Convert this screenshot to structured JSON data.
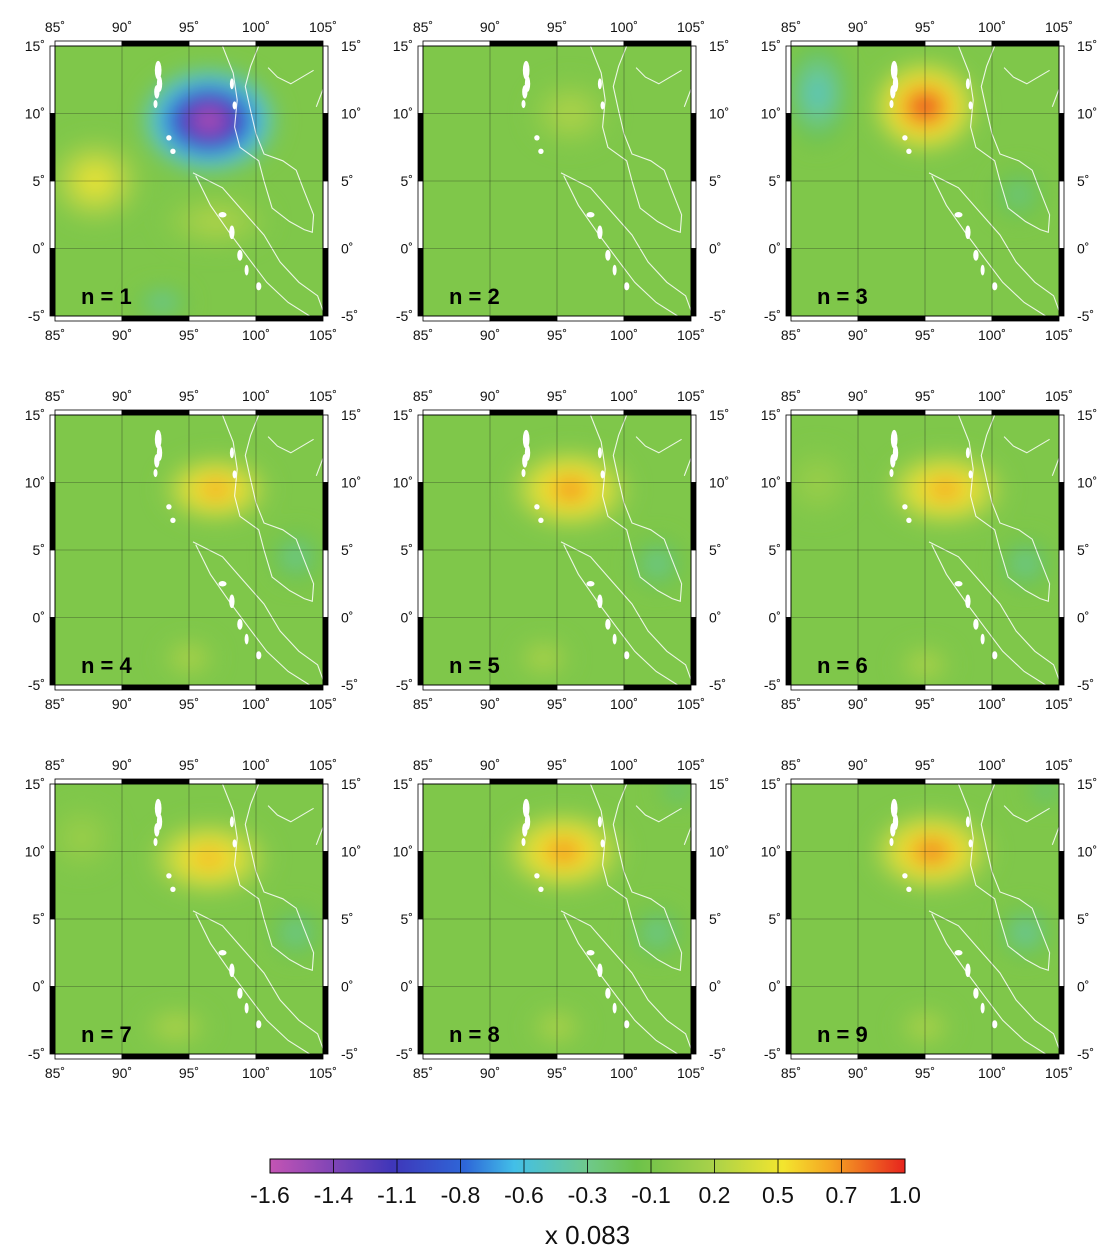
{
  "figure": {
    "lon_ticks": [
      "85˚",
      "90˚",
      "95˚",
      "100˚",
      "105˚"
    ],
    "lat_ticks": [
      "15˚",
      "10˚",
      "5˚",
      "0˚",
      "-5˚"
    ],
    "extent": {
      "lon": [
        85,
        105
      ],
      "lat": [
        -5,
        15
      ]
    },
    "panels": [
      {
        "label": "n = 1",
        "anomalies": [
          {
            "lon": 96.5,
            "lat": 9.5,
            "value": -1.6,
            "rlon": 5.2,
            "rlat": 4.0
          },
          {
            "lon": 88.0,
            "lat": 5.0,
            "value": 0.5,
            "rlon": 3.5,
            "rlat": 3.2
          },
          {
            "lon": 97.0,
            "lat": 2.0,
            "value": 0.25,
            "rlon": 4.0,
            "rlat": 2.0
          },
          {
            "lon": 93.0,
            "lat": -4.0,
            "value": -0.4,
            "rlon": 2.0,
            "rlat": 1.2
          }
        ]
      },
      {
        "label": "n = 2",
        "anomalies": [
          {
            "lon": 96.0,
            "lat": 10.0,
            "value": 0.25,
            "rlon": 3.0,
            "rlat": 2.5
          }
        ]
      },
      {
        "label": "n = 3",
        "anomalies": [
          {
            "lon": 95.0,
            "lat": 10.5,
            "value": 1.0,
            "rlon": 4.0,
            "rlat": 3.5
          },
          {
            "lon": 87.0,
            "lat": 11.5,
            "value": -0.5,
            "rlon": 2.5,
            "rlat": 4.0
          },
          {
            "lon": 102.0,
            "lat": 4.0,
            "value": -0.3,
            "rlon": 2.0,
            "rlat": 2.0
          }
        ]
      },
      {
        "label": "n = 4",
        "anomalies": [
          {
            "lon": 97.0,
            "lat": 9.5,
            "value": 0.75,
            "rlon": 4.0,
            "rlat": 2.5
          },
          {
            "lon": 103.0,
            "lat": 4.5,
            "value": -0.35,
            "rlon": 2.0,
            "rlat": 2.0
          },
          {
            "lon": 95.0,
            "lat": -3.0,
            "value": 0.25,
            "rlon": 2.0,
            "rlat": 1.5
          }
        ]
      },
      {
        "label": "n = 5",
        "anomalies": [
          {
            "lon": 96.0,
            "lat": 9.5,
            "value": 0.8,
            "rlon": 4.5,
            "rlat": 3.0
          },
          {
            "lon": 102.5,
            "lat": 4.0,
            "value": -0.35,
            "rlon": 2.0,
            "rlat": 2.0
          },
          {
            "lon": 94.0,
            "lat": -3.0,
            "value": 0.25,
            "rlon": 2.0,
            "rlat": 1.5
          }
        ]
      },
      {
        "label": "n = 6",
        "anomalies": [
          {
            "lon": 96.5,
            "lat": 9.5,
            "value": 0.75,
            "rlon": 4.5,
            "rlat": 2.8
          },
          {
            "lon": 102.5,
            "lat": 4.0,
            "value": -0.35,
            "rlon": 2.0,
            "rlat": 2.0
          },
          {
            "lon": 95.0,
            "lat": -3.5,
            "value": 0.25,
            "rlon": 2.0,
            "rlat": 1.5
          },
          {
            "lon": 87.0,
            "lat": 10.0,
            "value": 0.15,
            "rlon": 2.5,
            "rlat": 2.5
          }
        ]
      },
      {
        "label": "n = 7",
        "anomalies": [
          {
            "lon": 96.5,
            "lat": 9.5,
            "value": 0.7,
            "rlon": 4.5,
            "rlat": 2.8
          },
          {
            "lon": 103.0,
            "lat": 4.0,
            "value": -0.35,
            "rlon": 2.0,
            "rlat": 2.0
          },
          {
            "lon": 94.0,
            "lat": -3.0,
            "value": 0.25,
            "rlon": 2.5,
            "rlat": 1.5
          },
          {
            "lon": 87.0,
            "lat": 11.0,
            "value": 0.15,
            "rlon": 2.5,
            "rlat": 2.5
          }
        ]
      },
      {
        "label": "n = 8",
        "anomalies": [
          {
            "lon": 95.5,
            "lat": 10.0,
            "value": 0.8,
            "rlon": 4.5,
            "rlat": 3.0
          },
          {
            "lon": 102.5,
            "lat": 4.0,
            "value": -0.35,
            "rlon": 2.0,
            "rlat": 2.0
          },
          {
            "lon": 95.0,
            "lat": -3.0,
            "value": 0.25,
            "rlon": 2.0,
            "rlat": 1.5
          },
          {
            "lon": 104.0,
            "lat": 14.5,
            "value": -0.3,
            "rlon": 1.5,
            "rlat": 1.2
          }
        ]
      },
      {
        "label": "n = 9",
        "anomalies": [
          {
            "lon": 95.5,
            "lat": 10.0,
            "value": 0.85,
            "rlon": 4.5,
            "rlat": 3.0
          },
          {
            "lon": 102.5,
            "lat": 4.0,
            "value": -0.4,
            "rlon": 2.0,
            "rlat": 2.0
          },
          {
            "lon": 95.0,
            "lat": -3.0,
            "value": 0.25,
            "rlon": 2.0,
            "rlat": 1.5
          },
          {
            "lon": 104.0,
            "lat": 14.5,
            "value": -0.3,
            "rlon": 1.5,
            "rlat": 1.2
          }
        ]
      }
    ],
    "colorbar": {
      "tick_labels": [
        "-1.6",
        "-1.4",
        "-1.1",
        "-0.8",
        "-0.6",
        "-0.3",
        "-0.1",
        "0.2",
        "0.5",
        "0.7",
        "1.0"
      ],
      "scale_label": "x 0.083",
      "range": [
        -1.6,
        1.0
      ],
      "stops": [
        {
          "value": -1.6,
          "color": "#c454b4"
        },
        {
          "value": -1.1,
          "color": "#3f36b9"
        },
        {
          "value": -0.8,
          "color": "#2e67d8"
        },
        {
          "value": -0.6,
          "color": "#42bfe8"
        },
        {
          "value": -0.3,
          "color": "#6fc98b"
        },
        {
          "value": -0.1,
          "color": "#6cc24a"
        },
        {
          "value": 0.2,
          "color": "#a6d14a"
        },
        {
          "value": 0.5,
          "color": "#f3e52e"
        },
        {
          "value": 0.7,
          "color": "#f5a423"
        },
        {
          "value": 1.0,
          "color": "#e7241e"
        }
      ]
    },
    "background_value": 0.0
  }
}
